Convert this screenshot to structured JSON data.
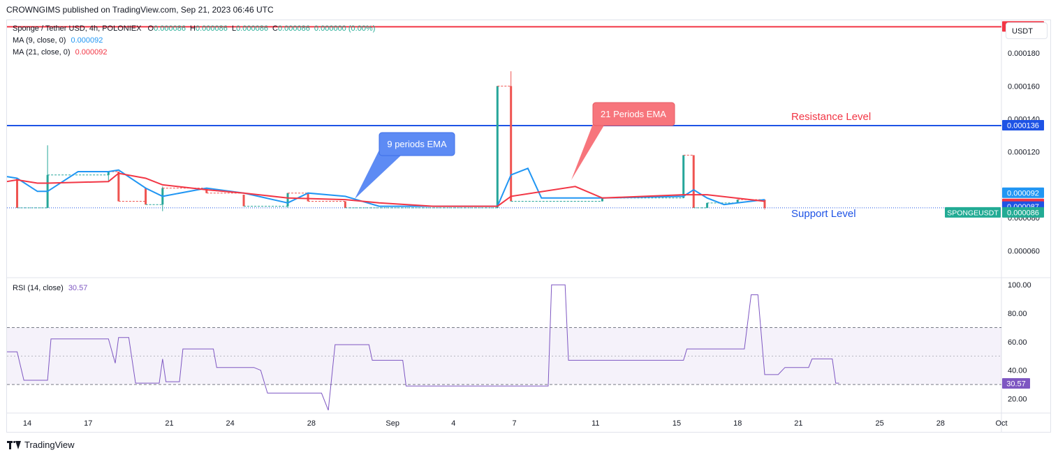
{
  "header": {
    "published": "CROWNGIMS published on TradingView.com, Sep 21, 2023 06:46 UTC"
  },
  "legend": {
    "symbol": "Sponge / Tether USD, 4h, POLONIEX",
    "o_label": "O",
    "o_value": "0.000086",
    "h_label": "H",
    "h_value": "0.000086",
    "l_label": "L",
    "l_value": "0.000086",
    "c_label": "C",
    "c_value": "0.000086",
    "change": "0.000000 (0.00%)",
    "ma9_label": "MA (9, close, 0)",
    "ma9_value": "0.000092",
    "ma21_label": "MA (21, close, 0)",
    "ma21_value": "0.000092",
    "rsi_label": "RSI (14, close)",
    "rsi_value": "30.57"
  },
  "currency_button": "USDT",
  "footer": {
    "brand": "TradingView"
  },
  "colors": {
    "up": "#26a69a",
    "down": "#ef5350",
    "ma9": "#2196f3",
    "ma21": "#f23645",
    "resistance": "#1e53e5",
    "top_line": "#f23645",
    "rsi": "#7e57c2"
  },
  "chart_data": [
    {
      "type": "candlestick",
      "ylim": [
        4.4e-05,
        0.0002
      ],
      "y_ticks": [
        "0.000060",
        "0.000080",
        "0.000120",
        "0.000140",
        "0.000160",
        "0.000180"
      ],
      "x_ticks": [
        "14",
        "17",
        "21",
        "24",
        "28",
        "Sep",
        "4",
        "7",
        "11",
        "15",
        "18",
        "21",
        "25",
        "28",
        "Oct"
      ],
      "x_range": [
        "Aug 13 2023",
        "Oct 1 2023"
      ],
      "last_price_label": "SPONGEUSDT",
      "price_badges": [
        {
          "value": "0.000196",
          "color": "#f23645"
        },
        {
          "value": "0.000136",
          "color": "#1e53e5"
        },
        {
          "value": "0.000092",
          "color": "#2196f3"
        },
        {
          "value": "0.000092",
          "color": "#f23645"
        },
        {
          "value": "0.000087",
          "color": "#1e53e5"
        },
        {
          "value": "0.000086",
          "color": "#22ab94"
        }
      ],
      "horizontal_lines": [
        {
          "y": 0.000196,
          "color": "#f23645",
          "label": ""
        },
        {
          "y": 0.000136,
          "color": "#1e53e5",
          "label": "Resistance Level",
          "label_color": "#f23645"
        },
        {
          "y": 8.6e-05,
          "color": "#1e53e5",
          "dotted": true,
          "label": "Support Level",
          "label_color": "#1e53e5"
        }
      ],
      "candles": [
        {
          "d": "Aug 13 12:00",
          "o": 0.000104,
          "h": 0.000104,
          "l": 8.6e-05,
          "c": 8.6e-05
        },
        {
          "d": "Aug 15 00:00",
          "o": 8.6e-05,
          "h": 0.000124,
          "l": 8.6e-05,
          "c": 0.000106
        },
        {
          "d": "Aug 18 00:00",
          "o": 0.000106,
          "h": 0.000108,
          "l": 0.000102,
          "c": 0.000108
        },
        {
          "d": "Aug 18 12:00",
          "o": 0.000108,
          "h": 0.000108,
          "l": 9e-05,
          "c": 9e-05
        },
        {
          "d": "Aug 19 20:00",
          "o": 9.8e-05,
          "h": 9.8e-05,
          "l": 8.8e-05,
          "c": 8.8e-05
        },
        {
          "d": "Aug 20 16:00",
          "o": 8.8e-05,
          "h": 9.9e-05,
          "l": 8.4e-05,
          "c": 9.8e-05
        },
        {
          "d": "Aug 22 20:00",
          "o": 9.8e-05,
          "h": 9.8e-05,
          "l": 9.5e-05,
          "c": 9.5e-05
        },
        {
          "d": "Aug 24 16:00",
          "o": 9.4e-05,
          "h": 9.4e-05,
          "l": 8.7e-05,
          "c": 8.7e-05
        },
        {
          "d": "Aug 26 20:00",
          "o": 8.7e-05,
          "h": 9.5e-05,
          "l": 8.6e-05,
          "c": 9.5e-05
        },
        {
          "d": "Aug 27 20:00",
          "o": 9.5e-05,
          "h": 9.5e-05,
          "l": 9e-05,
          "c": 9e-05
        },
        {
          "d": "Aug 29 16:00",
          "o": 9e-05,
          "h": 9e-05,
          "l": 8.6e-05,
          "c": 8.6e-05
        },
        {
          "d": "Sep 6 04:00",
          "o": 8.6e-05,
          "h": 0.00016,
          "l": 8.6e-05,
          "c": 0.00016
        },
        {
          "d": "Sep 6 20:00",
          "o": 0.00016,
          "h": 0.000169,
          "l": 9e-05,
          "c": 9e-05
        },
        {
          "d": "Sep 11 08:00",
          "o": 9e-05,
          "h": 9.2e-05,
          "l": 9e-05,
          "c": 9.2e-05
        },
        {
          "d": "Sep 15 08:00",
          "o": 9.2e-05,
          "h": 0.000118,
          "l": 9.2e-05,
          "c": 0.000118
        },
        {
          "d": "Sep 15 20:00",
          "o": 0.000118,
          "h": 0.000118,
          "l": 8.6e-05,
          "c": 8.6e-05
        },
        {
          "d": "Sep 16 12:00",
          "o": 8.6e-05,
          "h": 8.9e-05,
          "l": 8.6e-05,
          "c": 8.9e-05
        },
        {
          "d": "Sep 18 00:00",
          "o": 8.9e-05,
          "h": 9.1e-05,
          "l": 8.9e-05,
          "c": 9.1e-05
        },
        {
          "d": "Sep 19 08:00",
          "o": 9.1e-05,
          "h": 9.1e-05,
          "l": 8.5e-05,
          "c": 8.6e-05
        }
      ],
      "series": [
        {
          "name": "MA (9, close, 0)",
          "color": "#2196f3",
          "points": [
            [
              "Aug 13 00:00",
              0.000105
            ],
            [
              "Aug 13 12:00",
              0.000104
            ],
            [
              "Aug 14 12:00",
              9.6e-05
            ],
            [
              "Aug 15 00:00",
              9.6e-05
            ],
            [
              "Aug 16 12:00",
              0.000108
            ],
            [
              "Aug 18 00:00",
              0.000108
            ],
            [
              "Aug 18 12:00",
              0.000109
            ],
            [
              "Aug 19 20:00",
              9.8e-05
            ],
            [
              "Aug 20 16:00",
              9.3e-05
            ],
            [
              "Aug 22 20:00",
              9.8e-05
            ],
            [
              "Aug 24 16:00",
              9.5e-05
            ],
            [
              "Aug 26 20:00",
              8.9e-05
            ],
            [
              "Aug 27 20:00",
              9.5e-05
            ],
            [
              "Aug 29 16:00",
              9.3e-05
            ],
            [
              "Aug 31 08:00",
              8.7e-05
            ],
            [
              "Sep 3 00:00",
              8.7e-05
            ],
            [
              "Sep 6 04:00",
              8.7e-05
            ],
            [
              "Sep 6 20:00",
              0.000106
            ],
            [
              "Sep 7 16:00",
              0.00011
            ],
            [
              "Sep 8 08:00",
              9.2e-05
            ],
            [
              "Sep 11 08:00",
              9.2e-05
            ],
            [
              "Sep 15 08:00",
              9.3e-05
            ],
            [
              "Sep 15 20:00",
              9.7e-05
            ],
            [
              "Sep 16 12:00",
              9.2e-05
            ],
            [
              "Sep 17 08:00",
              8.8e-05
            ],
            [
              "Sep 18 00:00",
              8.9e-05
            ],
            [
              "Sep 19 08:00",
              9.1e-05
            ]
          ]
        },
        {
          "name": "MA (21, close, 0)",
          "color": "#f23645",
          "points": [
            [
              "Aug 13 00:00",
              0.000102
            ],
            [
              "Aug 13 12:00",
              0.000103
            ],
            [
              "Aug 14 12:00",
              0.000101
            ],
            [
              "Aug 15 00:00",
              0.000101
            ],
            [
              "Aug 18 00:00",
              0.000102
            ],
            [
              "Aug 18 12:00",
              0.000107
            ],
            [
              "Aug 19 20:00",
              0.000104
            ],
            [
              "Aug 20 16:00",
              0.0001
            ],
            [
              "Aug 22 20:00",
              9.7e-05
            ],
            [
              "Aug 24 16:00",
              9.5e-05
            ],
            [
              "Aug 26 20:00",
              9.2e-05
            ],
            [
              "Aug 29 16:00",
              9.1e-05
            ],
            [
              "Aug 31 08:00",
              8.9e-05
            ],
            [
              "Sep 3 00:00",
              8.7e-05
            ],
            [
              "Sep 6 04:00",
              8.7e-05
            ],
            [
              "Sep 6 20:00",
              9.3e-05
            ],
            [
              "Sep 10 00:00",
              9.9e-05
            ],
            [
              "Sep 11 08:00",
              9.2e-05
            ],
            [
              "Sep 15 08:00",
              9.4e-05
            ],
            [
              "Sep 16 12:00",
              9.4e-05
            ],
            [
              "Sep 19 08:00",
              9e-05
            ]
          ]
        }
      ],
      "annotations": [
        {
          "text": "9 periods EMA",
          "color": "#5d8bf4"
        },
        {
          "text": "21 Periods EMA",
          "color": "#f7757c"
        }
      ]
    },
    {
      "type": "line",
      "name": "RSI (14, close)",
      "ylim": [
        10,
        105
      ],
      "y_ticks": [
        "20.00",
        "40.00",
        "60.00",
        "80.00",
        "100.00"
      ],
      "band": [
        30,
        70
      ],
      "midline": 50,
      "series": [
        {
          "name": "RSI (14, close)",
          "color": "#7e57c2",
          "points": [
            [
              "Aug 13 00:00",
              53
            ],
            [
              "Aug 13 12:00",
              53
            ],
            [
              "Aug 13 20:00",
              33
            ],
            [
              "Aug 15 00:00",
              33
            ],
            [
              "Aug 15 04:00",
              62
            ],
            [
              "Aug 18 00:00",
              62
            ],
            [
              "Aug 18 08:00",
              45
            ],
            [
              "Aug 18 12:00",
              63
            ],
            [
              "Aug 19 00:00",
              63
            ],
            [
              "Aug 19 08:00",
              31
            ],
            [
              "Aug 20 12:00",
              31
            ],
            [
              "Aug 20 16:00",
              48
            ],
            [
              "Aug 20 20:00",
              32
            ],
            [
              "Aug 21 12:00",
              32
            ],
            [
              "Aug 21 16:00",
              55
            ],
            [
              "Aug 23 04:00",
              55
            ],
            [
              "Aug 23 08:00",
              42
            ],
            [
              "Aug 25 04:00",
              42
            ],
            [
              "Aug 25 12:00",
              40
            ],
            [
              "Aug 25 20:00",
              24
            ],
            [
              "Aug 28 12:00",
              24
            ],
            [
              "Aug 28 20:00",
              12
            ],
            [
              "Aug 29 04:00",
              58
            ],
            [
              "Aug 30 20:00",
              58
            ],
            [
              "Aug 31 00:00",
              47
            ],
            [
              "Sep 1 12:00",
              47
            ],
            [
              "Sep 1 16:00",
              29
            ],
            [
              "Sep 8 16:00",
              29
            ],
            [
              "Sep 8 20:00",
              100
            ],
            [
              "Sep 9 12:00",
              100
            ],
            [
              "Sep 9 16:00",
              47
            ],
            [
              "Sep 15 08:00",
              47
            ],
            [
              "Sep 15 12:00",
              55
            ],
            [
              "Sep 18 08:00",
              55
            ],
            [
              "Sep 18 16:00",
              93
            ],
            [
              "Sep 19 00:00",
              93
            ],
            [
              "Sep 19 08:00",
              37
            ],
            [
              "Sep 20 00:00",
              37
            ],
            [
              "Sep 20 08:00",
              42
            ],
            [
              "Sep 21 12:00",
              42
            ],
            [
              "Sep 21 16:00",
              48
            ],
            [
              "Sep 22 16:00",
              48
            ],
            [
              "Sep 22 20:00",
              31
            ],
            [
              "Sep 23 00:00",
              31
            ]
          ]
        }
      ]
    }
  ]
}
